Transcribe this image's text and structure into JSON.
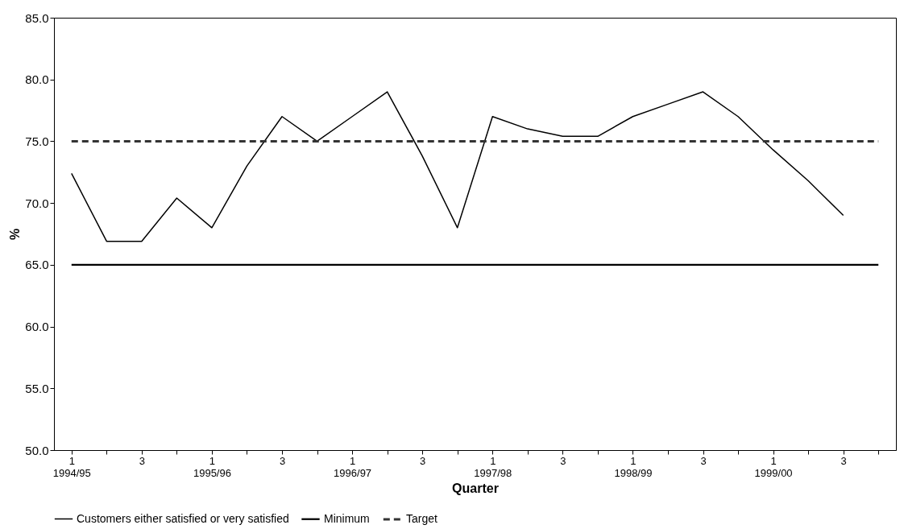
{
  "chart_data": {
    "type": "line",
    "xlabel": "Quarter",
    "ylabel": "%",
    "categories": [
      "1\n1994/95",
      null,
      "3",
      null,
      "1\n1995/96",
      null,
      "3",
      null,
      "1\n1996/97",
      null,
      "3",
      null,
      "1\n1997/98",
      null,
      "3",
      null,
      "1\n1998/99",
      null,
      "3",
      null,
      "1\n1999/00",
      null,
      "3",
      null
    ],
    "series": [
      {
        "name": "Customers either satisfied or very satisfied",
        "color": "#000000",
        "values": [
          72.4,
          66.9,
          66.9,
          70.4,
          68.0,
          73.0,
          77.0,
          75.0,
          77.0,
          79.0,
          73.8,
          68.0,
          77.0,
          76.0,
          75.4,
          75.4,
          77.0,
          78.0,
          79.0,
          77.0,
          74.3,
          71.8,
          69.0,
          null
        ]
      }
    ],
    "ref_lines": [
      {
        "axis": "y",
        "value": 65,
        "label": "Minimum",
        "color": "#000000",
        "line_style": "solid"
      },
      {
        "axis": "y",
        "value": 75,
        "label": "Target",
        "color": "#333333",
        "line_style": "dashed"
      }
    ],
    "ylim": [
      50,
      85
    ],
    "yticks": [
      {
        "value": 50,
        "label": "50.0"
      },
      {
        "value": 55,
        "label": "55.0"
      },
      {
        "value": 60,
        "label": "60.0"
      },
      {
        "value": 65,
        "label": "65.0"
      },
      {
        "value": 70,
        "label": "70.0"
      },
      {
        "value": 75,
        "label": "75.0"
      },
      {
        "value": 80,
        "label": "80.0"
      },
      {
        "value": 85,
        "label": "85.0"
      }
    ],
    "grid": false,
    "legend": "bottom",
    "marker": "none",
    "line_style": "solid"
  }
}
